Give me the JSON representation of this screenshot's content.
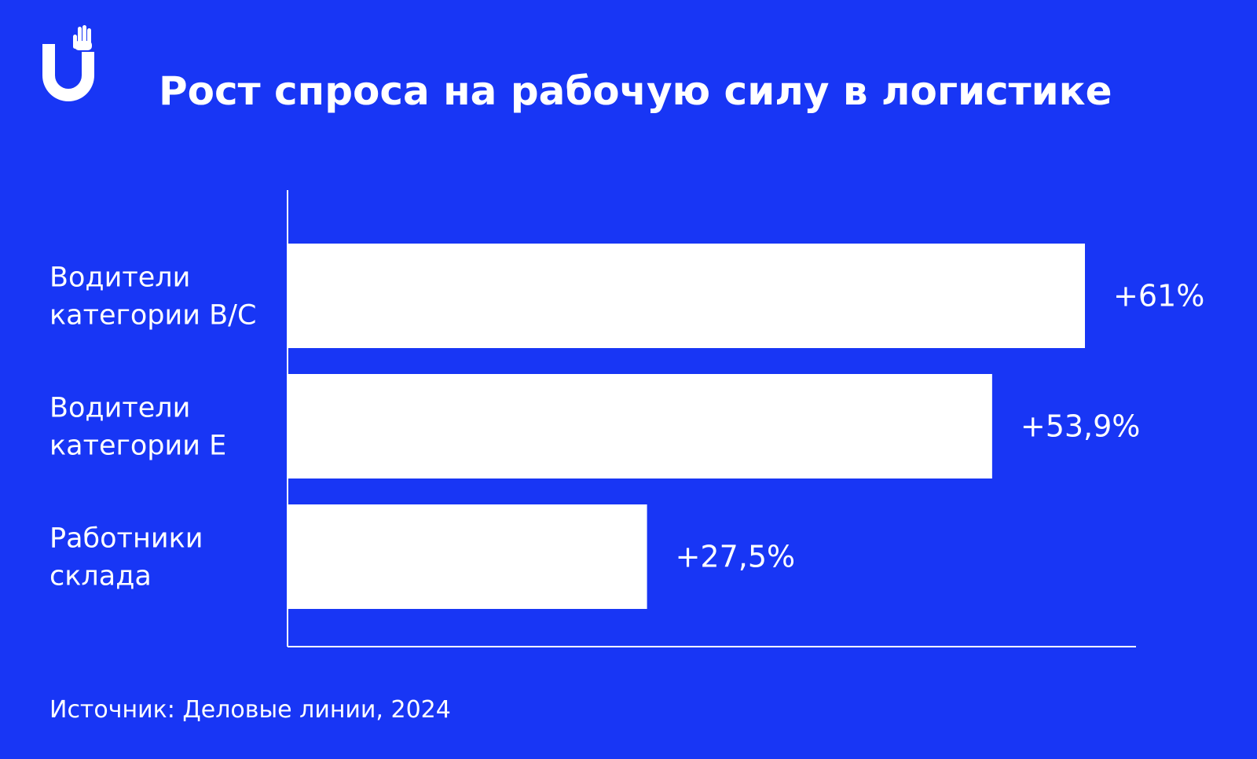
{
  "colors": {
    "background": "#1836f5",
    "bar": "#ffffff",
    "text": "#ffffff"
  },
  "logo": {
    "icon": "raised-hand-u-logo-icon"
  },
  "title": "Рост спроса на рабочую силу в логистике",
  "source": "Источник: Деловые линии, 2024",
  "chart_data": {
    "type": "bar",
    "orientation": "horizontal",
    "categories": [
      [
        "Водители",
        "категории B/C"
      ],
      [
        "Водители",
        "категории Е"
      ],
      [
        "Работники",
        "склада"
      ]
    ],
    "values": [
      61,
      53.9,
      27.5
    ],
    "value_labels": [
      "+61%",
      "+53,9%",
      "+27,5%"
    ],
    "unit": "%",
    "xlim": [
      0,
      61
    ],
    "grid": false,
    "legend": "none"
  }
}
